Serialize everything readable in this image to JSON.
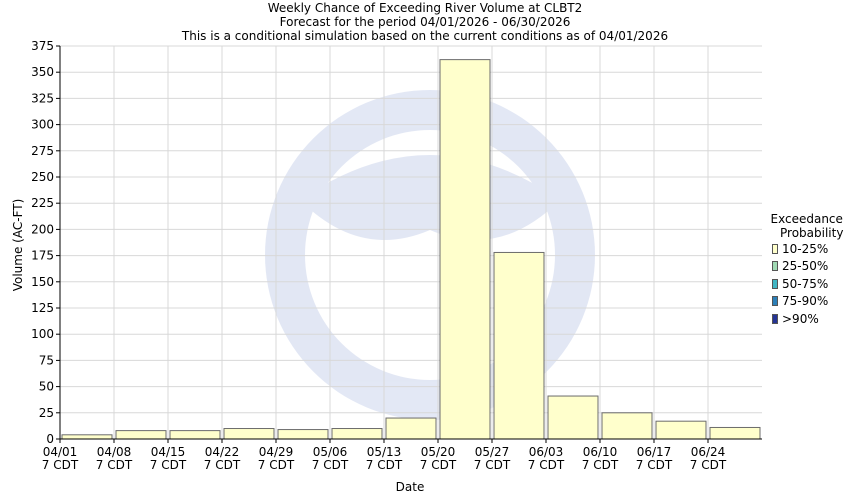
{
  "titles": {
    "line1": "Weekly Chance of Exceeding River Volume at CLBT2",
    "line2": "Forecast for the period 04/01/2026 - 06/30/2026",
    "line3": "This is a conditional simulation based on the current conditions as of 04/01/2026"
  },
  "chart_data": {
    "type": "bar",
    "xlabel": "Date",
    "ylabel": "Volume (AC-FT)",
    "ylim": [
      0,
      375
    ],
    "y_ticks": [
      0,
      25,
      50,
      75,
      100,
      125,
      150,
      175,
      200,
      225,
      250,
      275,
      300,
      325,
      350,
      375
    ],
    "grid": true,
    "categories": [
      "04/01",
      "04/08",
      "04/15",
      "04/22",
      "04/29",
      "05/06",
      "05/13",
      "05/20",
      "05/27",
      "06/03",
      "06/10",
      "06/17",
      "06/24"
    ],
    "category_sublabel": "7 CDT",
    "series": [
      {
        "name": "10-25%",
        "color": "#ffffcc",
        "values": [
          4,
          8,
          8,
          10,
          9,
          10,
          20,
          362,
          178,
          41,
          25,
          17,
          11
        ]
      }
    ],
    "legend": {
      "title_lines": [
        "Exceedance",
        "Probability"
      ],
      "position": "right",
      "items": [
        {
          "label": "10-25%",
          "color": "#ffffcc"
        },
        {
          "label": "25-50%",
          "color": "#a1dab4"
        },
        {
          "label": "50-75%",
          "color": "#41b6c4"
        },
        {
          "label": "75-90%",
          "color": "#2c7fb8"
        },
        {
          "label": ">90%",
          "color": "#253494"
        }
      ]
    }
  }
}
